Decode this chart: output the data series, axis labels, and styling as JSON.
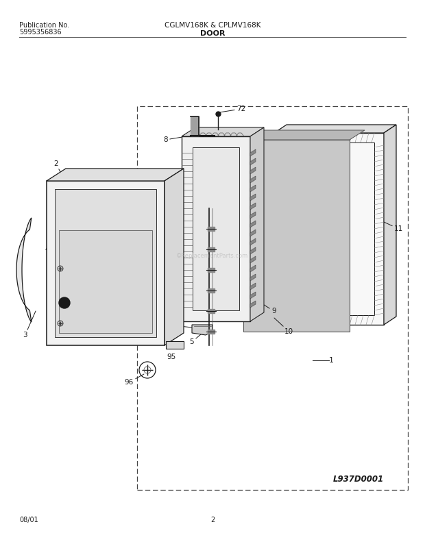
{
  "title_left1": "Publication No.",
  "title_left2": "5995356836",
  "title_center": "CGLMV168K & CPLMV168K",
  "title_section": "DOOR",
  "footer_left": "08/01",
  "footer_center": "2",
  "diagram_id": "L937D0001",
  "bg": "#ffffff",
  "lc": "#1a1a1a",
  "gray_light": "#e8e8e8",
  "gray_med": "#d0d0d0",
  "gray_dark": "#b0b0b0",
  "watermark": "©ReplacementParts.com"
}
